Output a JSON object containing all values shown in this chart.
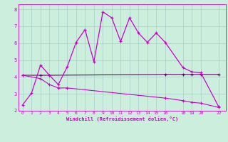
{
  "xlabel": "Windchill (Refroidissement éolien,°C)",
  "bg_color": "#cceedd",
  "line_color": "#cc00cc",
  "line_color2": "#660066",
  "grid_color": "#aacccc",
  "xlim": [
    -0.5,
    22.8
  ],
  "ylim": [
    2.0,
    8.3
  ],
  "xticks": [
    0,
    1,
    2,
    3,
    4,
    5,
    6,
    7,
    8,
    9,
    10,
    11,
    12,
    13,
    14,
    15,
    16,
    18,
    19,
    20,
    22
  ],
  "yticks": [
    2,
    3,
    4,
    5,
    6,
    7,
    8
  ],
  "line1_x": [
    0,
    1,
    2,
    3,
    4,
    5,
    6,
    7,
    8,
    9,
    10,
    11,
    12,
    13,
    14,
    15,
    16,
    18,
    19,
    20,
    22
  ],
  "line1_y": [
    2.35,
    3.05,
    4.7,
    4.1,
    3.55,
    4.6,
    6.05,
    6.8,
    4.9,
    7.85,
    7.5,
    6.1,
    7.5,
    6.6,
    6.05,
    6.6,
    6.05,
    4.55,
    4.3,
    4.25,
    2.25
  ],
  "line2_x": [
    0,
    2,
    3,
    16,
    18,
    19,
    20,
    22
  ],
  "line2_y": [
    4.1,
    4.1,
    4.1,
    4.15,
    4.15,
    4.15,
    4.15,
    4.15
  ],
  "line3_x": [
    0,
    2,
    3,
    4,
    5,
    16,
    18,
    19,
    20,
    22
  ],
  "line3_y": [
    4.1,
    3.9,
    3.55,
    3.35,
    3.35,
    2.75,
    2.6,
    2.5,
    2.45,
    2.2
  ]
}
